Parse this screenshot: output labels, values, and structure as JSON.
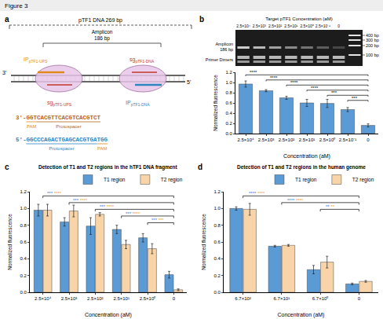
{
  "title": "Figure 3",
  "diagram": {
    "panel": "a",
    "dna_label": "pTF1 DNA 269 bp",
    "amplicon_label": [
      "Amplicon",
      "186 bp"
    ],
    "ends": [
      "3'",
      "5'"
    ],
    "probes": [
      {
        "main": "IP",
        "sub": "pTF1-UPS",
        "color": "#e08a1e"
      },
      {
        "main": "sg",
        "sub": "pTF1-UPS",
        "color": "#c0392b"
      },
      {
        "main": "sg",
        "sub": "pTF1-DNA",
        "color": "#c0392b"
      },
      {
        "main": "IP",
        "sub": "pTF1-DNA",
        "color": "#2e86c1"
      }
    ],
    "sequences": [
      {
        "color": "#b5651d",
        "parts": [
          {
            "text": "3'-"
          },
          {
            "text": "GGT",
            "role": "PAM",
            "color": "#e08a1e"
          },
          {
            "text": "CACGTTCACGTCACGTCT",
            "role": "Protospacer",
            "color": "#b5651d"
          }
        ]
      },
      {
        "color": "#2e86c1",
        "parts": [
          {
            "text": "5'-"
          },
          {
            "text": "GGCCCAGACTGAGCACGTGA",
            "role": "Protospacer",
            "color": "#2e86c1"
          },
          {
            "text": "TGG",
            "role": "PAM",
            "color": "#e08a1e"
          }
        ]
      }
    ]
  },
  "gel": {
    "title": "Target pTF1 Concentration (aM)",
    "ladder": [
      "400 bp",
      "300 bp",
      "200 bp",
      "100 bp"
    ],
    "amplicon_label": [
      "Amplicon",
      "186 bp"
    ],
    "dimer_label": "Primer Dimers"
  },
  "chart_data": [
    {
      "type": "bar",
      "panel": "b",
      "categories": [
        "2.5×10⁴",
        "2.5×10³",
        "2.5×10²",
        "2.5×10¹",
        "2.5×10⁰",
        "2.5×10⁻¹",
        "0"
      ],
      "values": [
        0.97,
        0.84,
        0.7,
        0.6,
        0.59,
        0.47,
        0.16
      ],
      "errors": [
        0.06,
        0.02,
        0.03,
        0.07,
        0.08,
        0.04,
        0.03
      ],
      "color": "#5b9bd5",
      "xlabel": "Concentration (aM)",
      "ylabel": "Normalized fluorescence",
      "ylim": [
        0,
        1.2
      ],
      "yticks": [
        {
          "value": 0,
          "label": "0.0"
        },
        0.2,
        0.4,
        0.6,
        0.8,
        {
          "value": 1,
          "label": "1.0"
        },
        1.2
      ],
      "grid": false,
      "significance": [
        {
          "from": 0,
          "to": 6,
          "labels": [
            {
              "text": "****",
              "color": "#000000"
            }
          ]
        },
        {
          "from": 1,
          "to": 6,
          "labels": [
            {
              "text": "****",
              "color": "#000000"
            }
          ]
        },
        {
          "from": 2,
          "to": 6,
          "labels": [
            {
              "text": "****",
              "color": "#000000"
            }
          ]
        },
        {
          "from": 3,
          "to": 6,
          "labels": [
            {
              "text": "****",
              "color": "#000000"
            }
          ]
        },
        {
          "from": 4,
          "to": 6,
          "labels": [
            {
              "text": "***",
              "color": "#000000"
            }
          ]
        },
        {
          "from": 5,
          "to": 6,
          "labels": [
            {
              "text": "***",
              "color": "#000000"
            }
          ]
        }
      ]
    },
    {
      "type": "bar",
      "panel": "c",
      "title": "Detection of T1 and T2 regions in the hTF1 DNA fragment",
      "categories": [
        "2.5×10⁴",
        "2.5×10³",
        "2.5×10²",
        "2.5×10¹",
        "2.5×10⁰",
        "0"
      ],
      "series": [
        {
          "name": "T1 region",
          "color": "#5b9bd5",
          "values": [
            0.98,
            0.84,
            0.79,
            0.75,
            0.65,
            0.21
          ],
          "errors": [
            0.07,
            0.05,
            0.1,
            0.05,
            0.05,
            0.04
          ]
        },
        {
          "name": "T2 region",
          "color": "#f8d4a8",
          "values": [
            0.98,
            0.97,
            0.93,
            0.57,
            0.52,
            0.03
          ],
          "errors": [
            0.07,
            0.07,
            0.02,
            0.05,
            0.06,
            0.01
          ]
        }
      ],
      "xlabel": "Concentration (aM)",
      "ylabel": "Normalized fluorescence",
      "ylim": [
        0,
        1.2
      ],
      "yticks": [
        {
          "value": 0,
          "label": "0.0"
        },
        0.2,
        0.4,
        0.6,
        0.8,
        {
          "value": 1,
          "label": "1.0"
        },
        1.2
      ],
      "grid": false,
      "legend": "top right",
      "significance": [
        {
          "from": 0,
          "to": 5,
          "labels": [
            {
              "text": "***",
              "color": "#3a7bd5"
            },
            {
              "text": "****",
              "color": "#f0a040"
            }
          ]
        },
        {
          "from": 1,
          "to": 5,
          "labels": [
            {
              "text": "***",
              "color": "#3a7bd5"
            },
            {
              "text": "****",
              "color": "#f0a040"
            }
          ]
        },
        {
          "from": 2,
          "to": 5,
          "labels": [
            {
              "text": "***",
              "color": "#3a7bd5"
            },
            {
              "text": "****",
              "color": "#f0a040"
            }
          ]
        },
        {
          "from": 3,
          "to": 5,
          "labels": [
            {
              "text": "***",
              "color": "#3a7bd5"
            },
            {
              "text": "****",
              "color": "#f0a040"
            }
          ]
        },
        {
          "from": 4,
          "to": 5,
          "labels": [
            {
              "text": "***",
              "color": "#3a7bd5"
            },
            {
              "text": "***",
              "color": "#f0a040"
            }
          ]
        }
      ]
    },
    {
      "type": "bar",
      "panel": "d",
      "title": "Detection of T1 and T2 regions in the human genome",
      "categories": [
        "6.7×10²",
        "6.7×10¹",
        "6.7×10⁰",
        "0"
      ],
      "series": [
        {
          "name": "T1 region",
          "color": "#5b9bd5",
          "values": [
            1.0,
            0.55,
            0.27,
            0.1
          ],
          "errors": [
            0.02,
            0.01,
            0.05,
            0.01
          ]
        },
        {
          "name": "T2 region",
          "color": "#f8d4a8",
          "values": [
            0.99,
            0.56,
            0.36,
            0.13
          ],
          "errors": [
            0.07,
            0.01,
            0.07,
            0.01
          ]
        }
      ],
      "xlabel": "Concentration (aM)",
      "ylabel": "Normalized fluorescence",
      "ylim": [
        0,
        1.2
      ],
      "yticks": [
        {
          "value": 0,
          "label": "0.0"
        },
        0.2,
        0.4,
        0.6,
        0.8,
        {
          "value": 1,
          "label": "1.0"
        },
        1.2
      ],
      "grid": false,
      "legend": "top right",
      "significance": [
        {
          "from": 0,
          "to": 3,
          "labels": [
            {
              "text": "****",
              "color": "#3a7bd5"
            },
            {
              "text": "****",
              "color": "#f0a040"
            }
          ]
        },
        {
          "from": 1,
          "to": 3,
          "labels": [
            {
              "text": "****",
              "color": "#3a7bd5"
            },
            {
              "text": "****",
              "color": "#f0a040"
            }
          ]
        },
        {
          "from": 2,
          "to": 3,
          "labels": [
            {
              "text": "**",
              "color": "#3a7bd5"
            },
            {
              "text": "**",
              "color": "#f0a040"
            }
          ]
        }
      ]
    }
  ]
}
